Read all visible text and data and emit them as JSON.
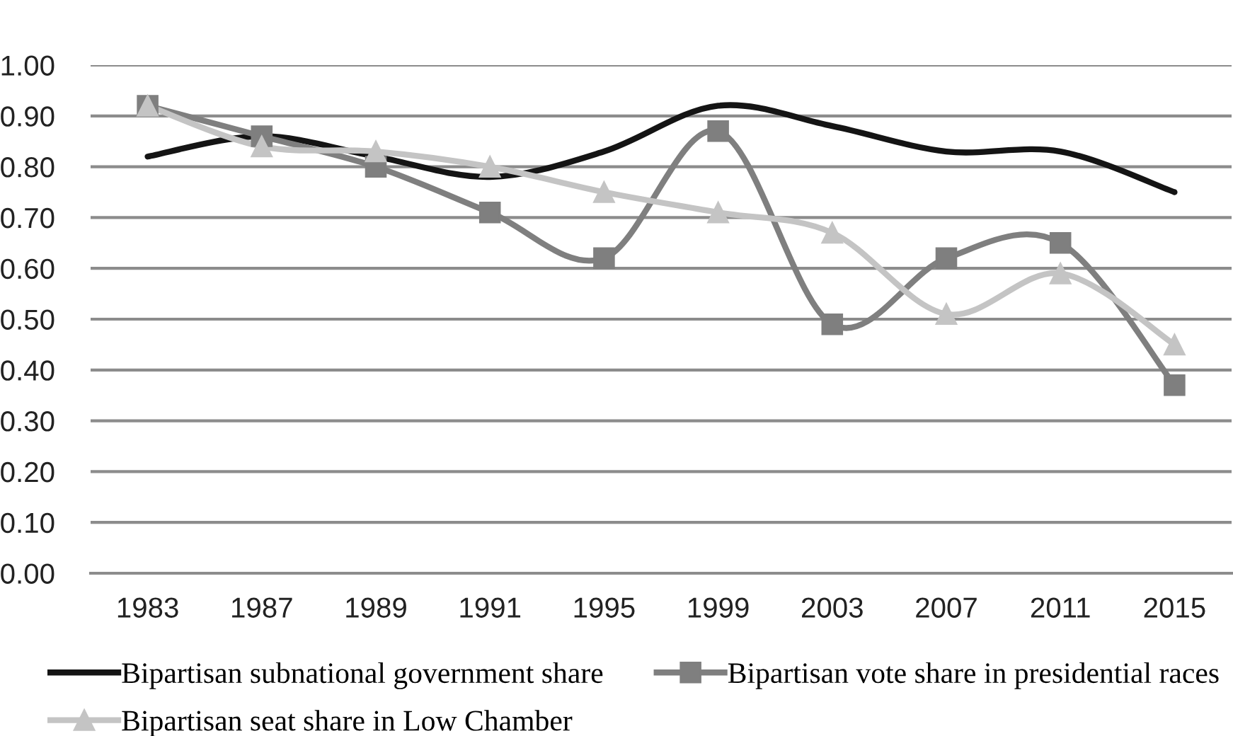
{
  "chart_data": {
    "type": "line",
    "categories": [
      "1983",
      "1987",
      "1989",
      "1991",
      "1995",
      "1999",
      "2003",
      "2007",
      "2011",
      "2015"
    ],
    "series": [
      {
        "name": "Bipartisan subnational government share",
        "color": "#141414",
        "marker": "none",
        "values": [
          0.82,
          0.86,
          0.82,
          0.78,
          0.83,
          0.92,
          0.88,
          0.83,
          0.83,
          0.75
        ]
      },
      {
        "name": "Bipartisan vote share in presidential races",
        "color": "#7f7f7f",
        "marker": "square",
        "values": [
          0.92,
          0.86,
          0.8,
          0.71,
          0.62,
          0.87,
          0.49,
          0.62,
          0.65,
          0.37
        ]
      },
      {
        "name": "Bipartisan seat share in Low Chamber",
        "color": "#c4c4c4",
        "marker": "triangle",
        "values": [
          0.92,
          0.84,
          0.83,
          0.8,
          0.75,
          0.71,
          0.67,
          0.51,
          0.59,
          0.45
        ]
      }
    ],
    "ylim": [
      0,
      1
    ],
    "yticks": [
      {
        "value": 0,
        "label": "0.00"
      },
      {
        "value": 0.1,
        "label": "0.10"
      },
      {
        "value": 0.2,
        "label": "0.20"
      },
      {
        "value": 0.3,
        "label": "0.30"
      },
      {
        "value": 0.4,
        "label": "0.40"
      },
      {
        "value": 0.5,
        "label": "0.50"
      },
      {
        "value": 0.6,
        "label": "0.60"
      },
      {
        "value": 0.7,
        "label": "0.70"
      },
      {
        "value": 0.8,
        "label": "0.80"
      },
      {
        "value": 0.9,
        "label": "0.90"
      },
      {
        "value": 1,
        "label": "1.00"
      }
    ],
    "grid": "y",
    "legend": "bottom",
    "line_style": "solid"
  }
}
